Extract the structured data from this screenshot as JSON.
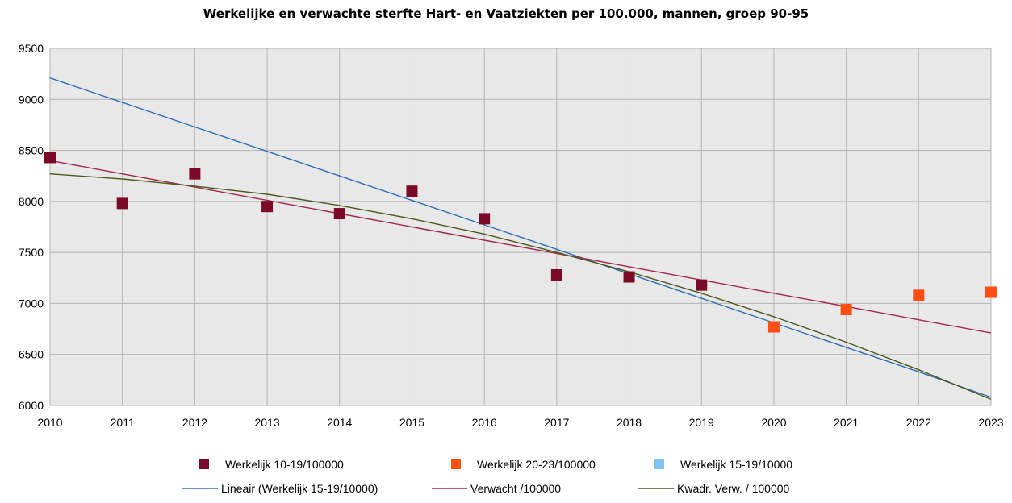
{
  "chart_data": {
    "type": "scatter",
    "title": "Werkelijke en verwachte sterfte Hart- en Vaatziekten per 100.000, mannen, groep 90-95",
    "xlabel": "",
    "ylabel": "",
    "xlim": [
      2010,
      2023
    ],
    "ylim": [
      6000,
      9500
    ],
    "x_ticks": [
      "2010",
      "2011",
      "2012",
      "2013",
      "2014",
      "2015",
      "2016",
      "2017",
      "2018",
      "2019",
      "2020",
      "2021",
      "2022",
      "2023"
    ],
    "y_ticks": [
      "6000",
      "6500",
      "7000",
      "7500",
      "8000",
      "8500",
      "9000",
      "9500"
    ],
    "grid": true,
    "legend_position": "bottom",
    "series": [
      {
        "name": "Werkelijk 10-19/100000",
        "kind": "marker",
        "color": "#7b0a26",
        "points": [
          [
            2010,
            8430
          ],
          [
            2011,
            7980
          ],
          [
            2012,
            8270
          ],
          [
            2013,
            7950
          ],
          [
            2014,
            7880
          ],
          [
            2015,
            8100
          ],
          [
            2016,
            7830
          ],
          [
            2017,
            7280
          ],
          [
            2018,
            7260
          ],
          [
            2019,
            7180
          ]
        ]
      },
      {
        "name": "Werkelijk 20-23/100000",
        "kind": "marker",
        "color": "#ff4d14",
        "points": [
          [
            2020,
            6770
          ],
          [
            2021,
            6940
          ],
          [
            2022,
            7080
          ],
          [
            2023,
            7110
          ]
        ]
      },
      {
        "name": "Werkelijk 15-19/10000",
        "kind": "marker",
        "color": "#7fc6f3",
        "points": []
      },
      {
        "name": "Lineair (Werkelijk 15-19/10000)",
        "kind": "line",
        "color": "#2e6fb5",
        "points": [
          [
            2010,
            9210
          ],
          [
            2011,
            8970
          ],
          [
            2012,
            8730
          ],
          [
            2013,
            8490
          ],
          [
            2014,
            8250
          ],
          [
            2015,
            8010
          ],
          [
            2016,
            7770
          ],
          [
            2017,
            7530
          ],
          [
            2018,
            7290
          ],
          [
            2019,
            7050
          ],
          [
            2020,
            6810
          ],
          [
            2021,
            6570
          ],
          [
            2022,
            6330
          ],
          [
            2023,
            6080
          ]
        ]
      },
      {
        "name": "Verwacht /100000",
        "kind": "line",
        "color": "#a0284a",
        "points": [
          [
            2010,
            8400
          ],
          [
            2011,
            8270
          ],
          [
            2012,
            8140
          ],
          [
            2013,
            8010
          ],
          [
            2014,
            7880
          ],
          [
            2015,
            7750
          ],
          [
            2016,
            7620
          ],
          [
            2017,
            7490
          ],
          [
            2018,
            7360
          ],
          [
            2019,
            7230
          ],
          [
            2020,
            7100
          ],
          [
            2021,
            6970
          ],
          [
            2022,
            6840
          ],
          [
            2023,
            6710
          ]
        ]
      },
      {
        "name": "Kwadr. Verw. / 100000",
        "kind": "line",
        "color": "#4d5a1c",
        "points": [
          [
            2010,
            8270
          ],
          [
            2011,
            8220
          ],
          [
            2012,
            8150
          ],
          [
            2013,
            8070
          ],
          [
            2014,
            7960
          ],
          [
            2015,
            7830
          ],
          [
            2016,
            7680
          ],
          [
            2017,
            7500
          ],
          [
            2018,
            7310
          ],
          [
            2019,
            7100
          ],
          [
            2020,
            6870
          ],
          [
            2021,
            6620
          ],
          [
            2022,
            6350
          ],
          [
            2023,
            6060
          ]
        ]
      }
    ]
  }
}
